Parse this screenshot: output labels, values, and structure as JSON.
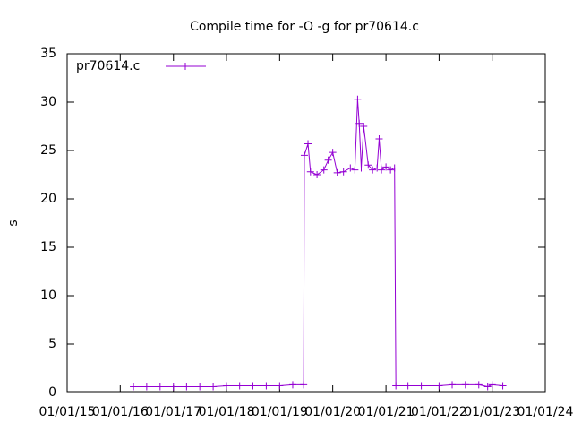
{
  "chart_data": {
    "type": "line",
    "title": "Compile time for -O -g for pr70614.c",
    "y_label": "s",
    "legend": "top-left",
    "xlim": [
      "2015-01-01",
      "2024-01-01"
    ],
    "xticks": [
      {
        "value": "2015-01-01",
        "label": "01/01/15"
      },
      {
        "value": "2016-01-01",
        "label": "01/01/16"
      },
      {
        "value": "2017-01-01",
        "label": "01/01/17"
      },
      {
        "value": "2018-01-01",
        "label": "01/01/18"
      },
      {
        "value": "2019-01-01",
        "label": "01/01/19"
      },
      {
        "value": "2020-01-01",
        "label": "01/01/20"
      },
      {
        "value": "2021-01-01",
        "label": "01/01/21"
      },
      {
        "value": "2022-01-01",
        "label": "01/01/22"
      },
      {
        "value": "2023-01-01",
        "label": "01/01/23"
      },
      {
        "value": "2024-01-01",
        "label": "01/01/24"
      }
    ],
    "ylim": [
      0,
      35
    ],
    "yticks": [
      0,
      5,
      10,
      15,
      20,
      25,
      30,
      35
    ],
    "x": [
      "2016-04-01",
      "2016-07-01",
      "2016-10-01",
      "2017-01-01",
      "2017-04-01",
      "2017-07-01",
      "2017-10-01",
      "2018-01-01",
      "2018-04-01",
      "2018-07-01",
      "2018-10-01",
      "2019-01-01",
      "2019-04-01",
      "2019-06-15",
      "2019-06-20",
      "2019-07-15",
      "2019-08-01",
      "2019-09-15",
      "2019-11-01",
      "2019-12-01",
      "2020-01-01",
      "2020-02-01",
      "2020-03-15",
      "2020-05-01",
      "2020-06-01",
      "2020-06-20",
      "2020-07-01",
      "2020-07-15",
      "2020-08-01",
      "2020-09-01",
      "2020-10-01",
      "2020-11-01",
      "2020-11-15",
      "2020-12-01",
      "2021-01-01",
      "2021-02-01",
      "2021-03-01",
      "2021-03-10",
      "2021-06-01",
      "2021-09-01",
      "2022-01-01",
      "2022-04-01",
      "2022-07-01",
      "2022-10-01",
      "2022-12-01",
      "2023-01-01",
      "2023-03-15"
    ],
    "series": [
      {
        "name": "pr70614.c",
        "color": "#9400d3",
        "values": [
          0.6,
          0.6,
          0.6,
          0.6,
          0.6,
          0.6,
          0.6,
          0.7,
          0.7,
          0.7,
          0.7,
          0.7,
          0.8,
          0.8,
          24.5,
          25.7,
          22.8,
          22.5,
          23.0,
          24.0,
          24.8,
          22.7,
          22.8,
          23.2,
          23.0,
          30.3,
          27.8,
          23.2,
          27.5,
          23.5,
          23.0,
          23.2,
          26.2,
          23.0,
          23.3,
          23.0,
          23.2,
          0.7,
          0.7,
          0.7,
          0.7,
          0.8,
          0.8,
          0.8,
          0.6,
          0.8,
          0.7
        ]
      }
    ]
  }
}
